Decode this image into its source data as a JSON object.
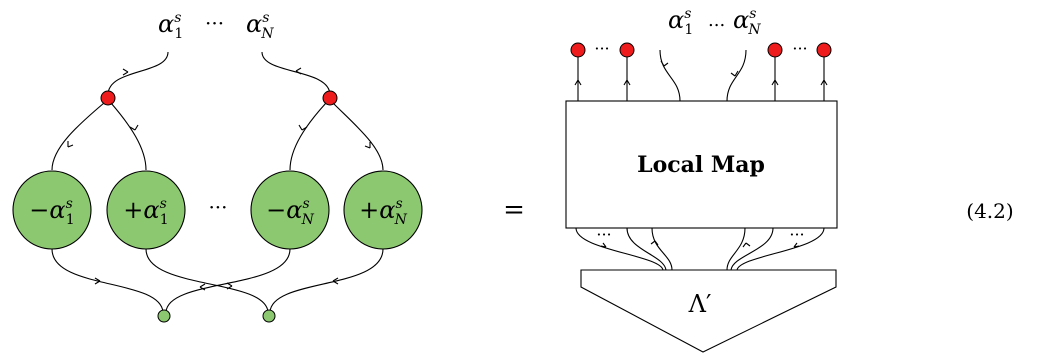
{
  "left": {
    "top_labels": {
      "first_base": "α",
      "first_sup": "s",
      "first_sub": "1",
      "dots": "···",
      "last_base": "α",
      "last_sup": "s",
      "last_sub": "N"
    },
    "circles": [
      {
        "sign": "−",
        "base": "α",
        "sup": "s",
        "sub": "1"
      },
      {
        "sign": "+",
        "base": "α",
        "sup": "s",
        "sub": "1"
      },
      {
        "sign": "−",
        "base": "α",
        "sup": "s",
        "sub": "N"
      },
      {
        "sign": "+",
        "base": "α",
        "sup": "s",
        "sub": "N"
      }
    ],
    "middle_dots": "···"
  },
  "equals": "=",
  "right": {
    "top_labels": {
      "first_base": "α",
      "first_sup": "s",
      "first_sub": "1",
      "dots": "...",
      "last_base": "α",
      "last_sup": "s",
      "last_sub": "N"
    },
    "red_dots": "···",
    "box_label": "Local Map",
    "bottom_dots_left": "···",
    "bottom_dots_right": "···",
    "triangle_label": "Λ′"
  },
  "equation_number": "(4.2)",
  "colors": {
    "green_fill": "#8cc870",
    "green_stroke": "#000000",
    "red_fill": "#ee1c1c",
    "small_green": "#8cc870"
  }
}
